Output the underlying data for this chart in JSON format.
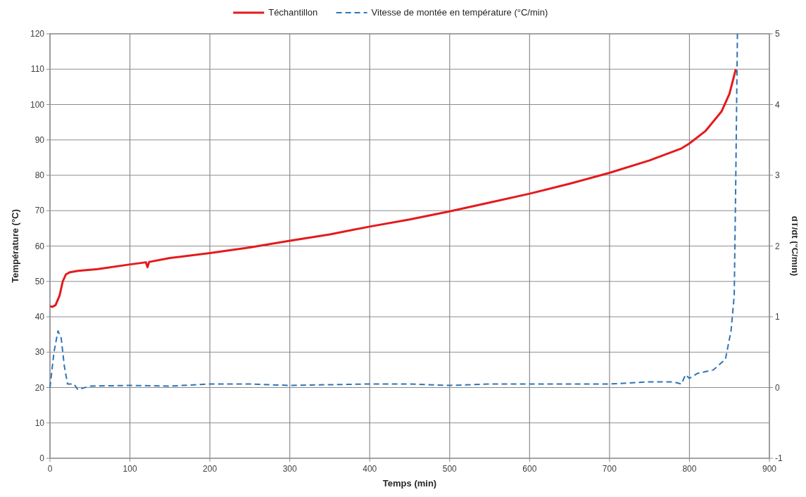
{
  "chart_data": {
    "type": "line",
    "xlabel": "Temps (min)",
    "ylabel": "Température (°C)",
    "y2label": "dT/dt (°C/min)",
    "xlim": [
      0,
      900
    ],
    "xticks": [
      0,
      100,
      200,
      300,
      400,
      500,
      600,
      700,
      800,
      900
    ],
    "ylim": [
      0,
      120
    ],
    "yticks": [
      0,
      10,
      20,
      30,
      40,
      50,
      60,
      70,
      80,
      90,
      100,
      110,
      120
    ],
    "y2lim": [
      -1,
      5
    ],
    "y2ticks": [
      -1,
      0,
      1,
      2,
      3,
      4,
      5
    ],
    "grid": true,
    "legend": "top",
    "series": [
      {
        "name": "Téchantillon",
        "color": "#e41a1c",
        "line_style": "solid",
        "x": [
          0,
          3,
          7,
          12,
          16,
          20,
          25,
          35,
          60,
          100,
          120,
          122,
          124,
          150,
          200,
          250,
          300,
          350,
          400,
          450,
          500,
          550,
          600,
          650,
          700,
          750,
          790,
          800,
          820,
          840,
          850,
          858
        ],
        "values": [
          43,
          42.8,
          43.3,
          46,
          50,
          52,
          52.6,
          53,
          53.5,
          54.8,
          55.4,
          54,
          55.5,
          56.6,
          58,
          59.6,
          61.5,
          63.3,
          65.5,
          67.5,
          69.8,
          72.3,
          74.8,
          77.6,
          80.7,
          84.2,
          87.6,
          89,
          92.5,
          98,
          103,
          110
        ]
      },
      {
        "name": "Vitesse de montée en température (°C/min)",
        "color": "#2e75b6",
        "line_style": "dashed",
        "axis": "y2",
        "x": [
          0,
          5,
          10,
          14,
          18,
          22,
          30,
          35,
          50,
          100,
          150,
          200,
          250,
          300,
          400,
          450,
          500,
          550,
          600,
          650,
          700,
          750,
          780,
          790,
          795,
          800,
          810,
          830,
          845,
          852,
          856,
          858,
          860
        ],
        "values": [
          0,
          0.5,
          0.8,
          0.7,
          0.3,
          0.05,
          0.05,
          -0.03,
          0.02,
          0.03,
          0.02,
          0.05,
          0.05,
          0.03,
          0.05,
          0.05,
          0.03,
          0.05,
          0.05,
          0.05,
          0.05,
          0.08,
          0.08,
          0.05,
          0.18,
          0.13,
          0.2,
          0.25,
          0.4,
          0.8,
          1.3,
          3,
          5
        ]
      }
    ]
  }
}
